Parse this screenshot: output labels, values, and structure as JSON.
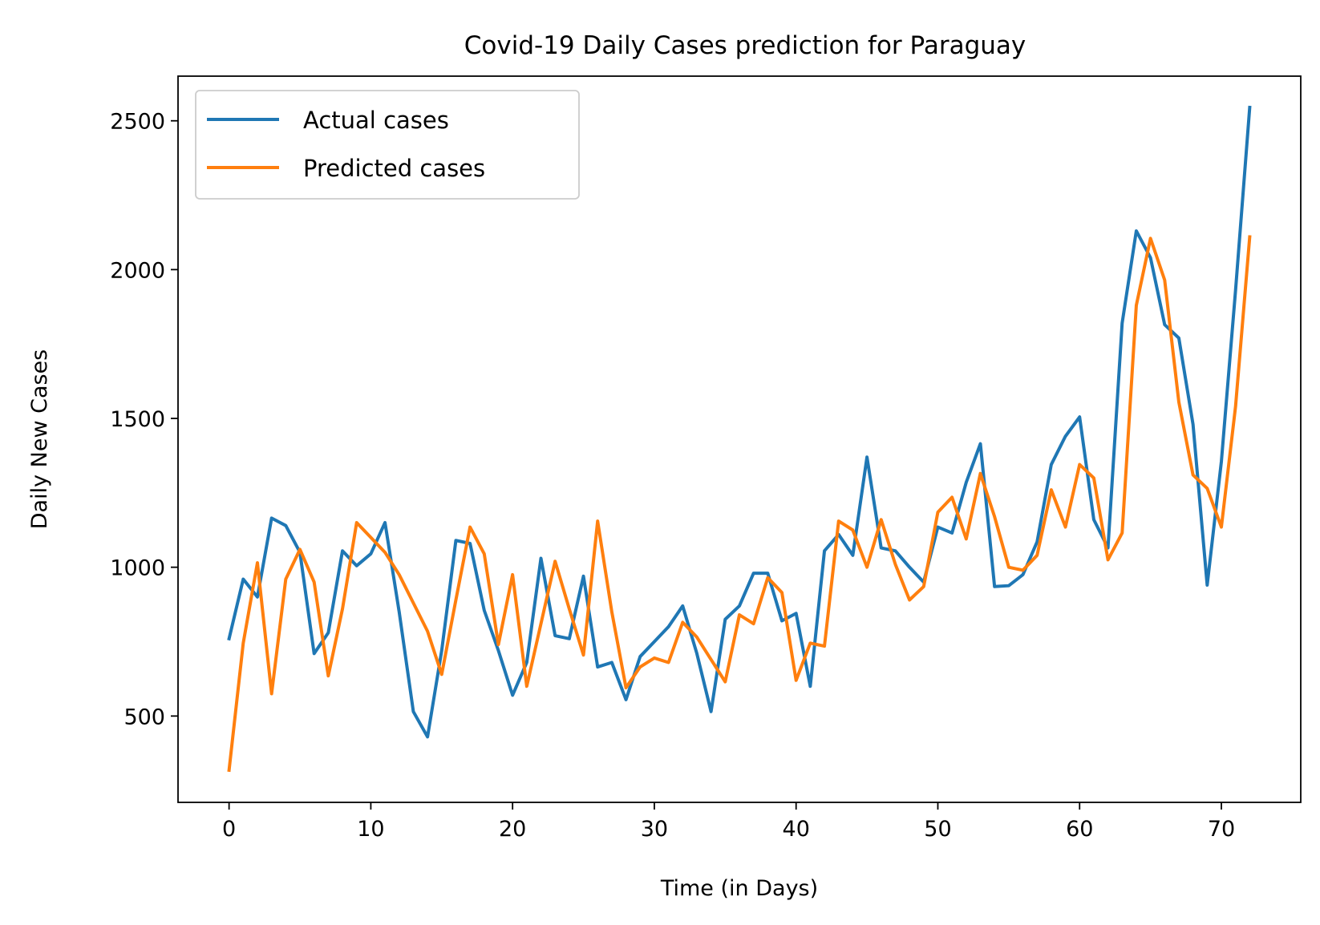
{
  "chart_data": {
    "type": "line",
    "title": "Covid-19 Daily Cases prediction for Paraguay",
    "xlabel": "Time (in Days)",
    "ylabel": "Daily New Cases",
    "xlim": [
      -3.6,
      75.6
    ],
    "ylim": [
      210,
      2650
    ],
    "xticks": [
      0,
      10,
      20,
      30,
      40,
      50,
      60,
      70
    ],
    "yticks": [
      500,
      1000,
      1500,
      2000,
      2500
    ],
    "grid": false,
    "legend_position": "upper left",
    "x": [
      0,
      1,
      2,
      3,
      4,
      5,
      6,
      7,
      8,
      9,
      10,
      11,
      12,
      13,
      14,
      15,
      16,
      17,
      18,
      19,
      20,
      21,
      22,
      23,
      24,
      25,
      26,
      27,
      28,
      29,
      30,
      31,
      32,
      33,
      34,
      35,
      36,
      37,
      38,
      39,
      40,
      41,
      42,
      43,
      44,
      45,
      46,
      47,
      48,
      49,
      50,
      51,
      52,
      53,
      54,
      55,
      56,
      57,
      58,
      59,
      60,
      61,
      62,
      63,
      64,
      65,
      66,
      67,
      68,
      69,
      70,
      71,
      72
    ],
    "series": [
      {
        "name": "Actual cases",
        "color": "#1f77b4",
        "values": [
          760,
          960,
          900,
          1165,
          1140,
          1050,
          710,
          780,
          1055,
          1005,
          1045,
          1150,
          850,
          515,
          430,
          720,
          1090,
          1080,
          855,
          720,
          570,
          680,
          1030,
          770,
          760,
          970,
          665,
          680,
          555,
          700,
          750,
          800,
          870,
          710,
          515,
          825,
          870,
          980,
          980,
          820,
          845,
          600,
          1055,
          1110,
          1040,
          1370,
          1065,
          1055,
          1000,
          950,
          1135,
          1115,
          1285,
          1415,
          935,
          938,
          975,
          1085,
          1345,
          1440,
          1505,
          1160,
          1065,
          1820,
          2130,
          2040,
          1815,
          1770,
          1480,
          940,
          1355,
          1930,
          2545
        ]
      },
      {
        "name": "Predicted cases",
        "color": "#ff7f0e",
        "values": [
          318,
          745,
          1015,
          575,
          960,
          1060,
          950,
          635,
          860,
          1150,
          1100,
          1050,
          975,
          880,
          785,
          640,
          890,
          1135,
          1045,
          740,
          975,
          600,
          810,
          1020,
          860,
          705,
          1155,
          850,
          595,
          665,
          695,
          680,
          815,
          765,
          690,
          615,
          840,
          810,
          965,
          915,
          620,
          745,
          735,
          1155,
          1125,
          1000,
          1160,
          1010,
          890,
          935,
          1185,
          1235,
          1095,
          1315,
          1170,
          1000,
          990,
          1040,
          1260,
          1135,
          1345,
          1300,
          1025,
          1115,
          1880,
          2105,
          1965,
          1555,
          1310,
          1265,
          1135,
          1540,
          2110
        ]
      }
    ]
  }
}
